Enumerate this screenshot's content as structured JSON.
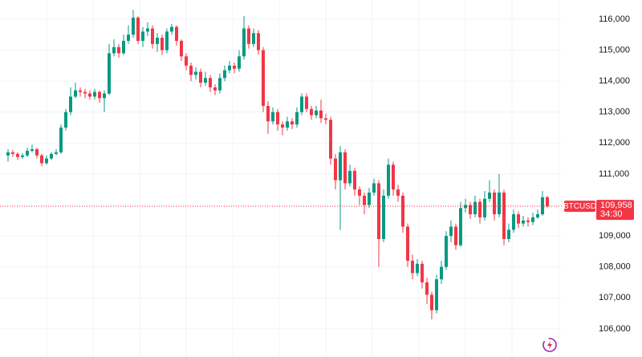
{
  "chart_data": {
    "type": "candlestick",
    "series": [
      {
        "name": "BTCUSD",
        "up_color": "#089981",
        "down_color": "#f23645",
        "open": [
          111600,
          111700,
          111650,
          111550,
          111600,
          111750,
          111800,
          111600,
          111350,
          111500,
          111650,
          111700,
          112500,
          113000,
          113500,
          113700,
          113650,
          113600,
          113500,
          113650,
          113450,
          113600,
          114900,
          115100,
          114900,
          115300,
          115500,
          116050,
          115300,
          115600,
          115700,
          115200,
          115400,
          115000,
          115600,
          115750,
          115300,
          114800,
          114500,
          114200,
          114300,
          113950,
          114100,
          113800,
          113700,
          114100,
          114350,
          114500,
          114400,
          114800,
          115700,
          115200,
          115550,
          115000,
          113200,
          112700,
          113000,
          112600,
          112500,
          112700,
          112600,
          113000,
          113500,
          113100,
          112900,
          113050,
          112800,
          112750,
          111500,
          110800,
          111700,
          110700,
          111100,
          110500,
          110300,
          110000,
          110400,
          110700,
          108900,
          110300,
          111300,
          110500,
          110300,
          109300,
          108200,
          107800,
          108100,
          107500,
          107100,
          106600,
          107600,
          108000,
          109000,
          109300,
          108700,
          109900,
          110000,
          109700,
          110100,
          109600,
          110200,
          110400,
          109700,
          110400,
          108900,
          109200,
          109700,
          109400,
          109500,
          109450,
          109600,
          109700,
          110250
        ],
        "high": [
          111800,
          111780,
          111700,
          111680,
          111850,
          111950,
          111850,
          111650,
          111600,
          111700,
          111800,
          112600,
          113100,
          113800,
          113950,
          113800,
          113750,
          113700,
          113750,
          113700,
          113700,
          115200,
          115350,
          115200,
          115500,
          115800,
          116300,
          116100,
          115750,
          115900,
          115800,
          115550,
          115500,
          115700,
          115850,
          115800,
          115350,
          114900,
          114600,
          114450,
          114400,
          114300,
          114200,
          113900,
          114250,
          114500,
          114650,
          114600,
          115000,
          116100,
          115800,
          115700,
          115650,
          115100,
          113350,
          113150,
          113100,
          112700,
          112850,
          112800,
          113150,
          113600,
          113600,
          113200,
          113200,
          113400,
          112950,
          112850,
          111650,
          111900,
          111800,
          111300,
          111200,
          110600,
          110400,
          110550,
          110850,
          110800,
          110500,
          111500,
          111400,
          110650,
          110400,
          109400,
          108400,
          108250,
          108200,
          107650,
          107200,
          107750,
          108200,
          109150,
          109500,
          109400,
          110100,
          110200,
          110100,
          110300,
          110200,
          110450,
          110800,
          110500,
          111000,
          110500,
          109400,
          109850,
          109800,
          109650,
          109600,
          109750,
          109850,
          110450,
          110300
        ],
        "low": [
          111400,
          111550,
          111450,
          111480,
          111550,
          111700,
          111500,
          111250,
          111300,
          111450,
          111600,
          111650,
          112400,
          112900,
          113450,
          113500,
          113450,
          113400,
          113400,
          113300,
          113000,
          113550,
          114800,
          114750,
          114850,
          115200,
          115400,
          115200,
          115100,
          115450,
          115050,
          114950,
          114850,
          114900,
          115500,
          115150,
          114650,
          114350,
          114000,
          114050,
          113800,
          113850,
          113650,
          113550,
          113600,
          114000,
          114250,
          114250,
          114300,
          114700,
          115050,
          115100,
          114850,
          113000,
          112300,
          112600,
          112400,
          112250,
          112400,
          112450,
          112500,
          112900,
          113000,
          112750,
          112800,
          112650,
          112600,
          111300,
          110500,
          109200,
          110500,
          110600,
          110300,
          110000,
          109700,
          109900,
          110300,
          108000,
          108800,
          110200,
          110300,
          110100,
          109100,
          108000,
          107600,
          107700,
          107300,
          106800,
          106300,
          106500,
          107450,
          107900,
          108800,
          108550,
          108650,
          109750,
          109550,
          109600,
          109400,
          109500,
          110100,
          109500,
          109600,
          108700,
          108800,
          109100,
          109250,
          109300,
          109300,
          109350,
          109550,
          109650,
          109900
        ],
        "close": [
          111700,
          111650,
          111550,
          111600,
          111750,
          111800,
          111600,
          111350,
          111500,
          111650,
          111700,
          112500,
          113000,
          113500,
          113700,
          113650,
          113600,
          113500,
          113650,
          113450,
          113600,
          114900,
          115100,
          114900,
          115300,
          115500,
          116050,
          115300,
          115600,
          115700,
          115200,
          115400,
          115000,
          115600,
          115750,
          115300,
          114800,
          114500,
          114200,
          114300,
          113950,
          114100,
          113800,
          113700,
          114100,
          114350,
          114500,
          114400,
          114800,
          115700,
          115200,
          115550,
          115000,
          113200,
          112700,
          113000,
          112600,
          112500,
          112700,
          112600,
          113000,
          113500,
          113100,
          112900,
          113050,
          112800,
          112750,
          111500,
          110800,
          111700,
          110700,
          111100,
          110500,
          110300,
          110000,
          110400,
          110700,
          108900,
          110300,
          111300,
          110500,
          110300,
          109300,
          108200,
          107800,
          108100,
          107500,
          107100,
          106600,
          107600,
          108000,
          109000,
          109300,
          108700,
          109900,
          110000,
          109700,
          110100,
          109600,
          110200,
          110400,
          109700,
          110400,
          108900,
          109200,
          109700,
          109400,
          109500,
          109450,
          109600,
          109700,
          110250,
          109958
        ]
      }
    ],
    "last_price": {
      "value": 109958,
      "label": "109,958"
    },
    "countdown": "34:30",
    "ylim": [
      105090,
      116620
    ],
    "yticks": [
      {
        "value": 106000,
        "label": "106,000"
      },
      {
        "value": 107000,
        "label": "107,000"
      },
      {
        "value": 108000,
        "label": "108,000"
      },
      {
        "value": 109000,
        "label": "109,000"
      },
      {
        "value": 110000,
        "label": "110,000"
      },
      {
        "value": 111000,
        "label": "111,000"
      },
      {
        "value": 112000,
        "label": "112,000"
      },
      {
        "value": 113000,
        "label": "113,000"
      },
      {
        "value": 114000,
        "label": "114,000"
      },
      {
        "value": 115000,
        "label": "115,000"
      },
      {
        "value": 116000,
        "label": "116,000"
      }
    ],
    "grid": true
  }
}
